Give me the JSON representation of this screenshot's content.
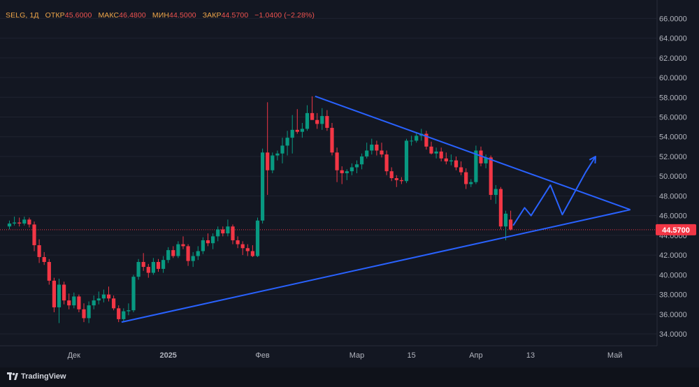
{
  "legend": {
    "symbol": "SELG, 1Д",
    "open_label": "ОТКР",
    "open": "45.6000",
    "high_label": "МАКС",
    "high": "46.4800",
    "low_label": "МИН",
    "low": "44.5000",
    "close_label": "ЗАКР",
    "close": "44.5700",
    "change": "−1.0400 (−2.28%)"
  },
  "watermark": {
    "text": "TradingView"
  },
  "colors": {
    "background": "#131722",
    "up": "#089981",
    "down": "#f23645",
    "trendline": "#2962ff",
    "price_line": "#f23645",
    "axis_text": "#b2b5be",
    "grid": "#1f2330"
  },
  "chart_data": {
    "type": "candlestick",
    "ylim": [
      32.8,
      67.3
    ],
    "y_ticks": [
      "34.0000",
      "36.0000",
      "38.0000",
      "40.0000",
      "42.0000",
      "44.0000",
      "46.0000",
      "48.0000",
      "50.0000",
      "52.0000",
      "54.0000",
      "56.0000",
      "58.0000",
      "60.0000",
      "62.0000",
      "64.0000",
      "66.0000"
    ],
    "x_tick_labels": [
      {
        "label": "Дек",
        "bar": 13
      },
      {
        "label": "2025",
        "bar": 32
      },
      {
        "label": "Фев",
        "bar": 51
      },
      {
        "label": "Мар",
        "bar": 70
      },
      {
        "label": "15",
        "bar": 81
      },
      {
        "label": "Апр",
        "bar": 94
      },
      {
        "label": "13",
        "bar": 105
      },
      {
        "label": "Май",
        "bar": 122
      }
    ],
    "last_price": 44.57,
    "last_price_label": "44.5700",
    "candles": [
      [
        44.9,
        45.5,
        44.6,
        45.2
      ],
      [
        45.2,
        45.9,
        45.0,
        45.3
      ],
      [
        45.3,
        45.8,
        44.9,
        45.2
      ],
      [
        45.2,
        45.9,
        45.0,
        45.6
      ],
      [
        45.6,
        45.8,
        44.8,
        45.1
      ],
      [
        45.1,
        45.4,
        42.4,
        43.0
      ],
      [
        43.0,
        43.6,
        41.2,
        41.8
      ],
      [
        41.8,
        42.3,
        41.0,
        41.3
      ],
      [
        41.3,
        41.6,
        39.0,
        39.4
      ],
      [
        39.4,
        39.7,
        36.2,
        36.7
      ],
      [
        36.7,
        39.6,
        35.1,
        39.0
      ],
      [
        39.0,
        39.3,
        37.0,
        37.4
      ],
      [
        37.4,
        38.1,
        36.5,
        36.9
      ],
      [
        36.9,
        38.2,
        36.6,
        37.8
      ],
      [
        37.8,
        38.0,
        36.2,
        36.5
      ],
      [
        36.5,
        37.1,
        35.2,
        35.6
      ],
      [
        35.6,
        37.3,
        35.1,
        36.9
      ],
      [
        36.9,
        37.9,
        36.5,
        37.4
      ],
      [
        37.4,
        38.3,
        37.0,
        37.6
      ],
      [
        37.6,
        38.5,
        37.2,
        38.0
      ],
      [
        38.0,
        38.8,
        37.3,
        37.6
      ],
      [
        37.6,
        37.9,
        36.4,
        36.6
      ],
      [
        36.6,
        36.9,
        35.2,
        35.5
      ],
      [
        35.5,
        36.6,
        35.3,
        36.3
      ],
      [
        36.3,
        37.1,
        35.9,
        36.4
      ],
      [
        36.4,
        40.0,
        36.2,
        39.8
      ],
      [
        39.8,
        41.6,
        39.5,
        41.3
      ],
      [
        41.3,
        42.2,
        40.4,
        40.8
      ],
      [
        40.8,
        41.1,
        39.7,
        40.2
      ],
      [
        40.2,
        41.7,
        40.0,
        41.3
      ],
      [
        41.3,
        41.6,
        40.3,
        40.6
      ],
      [
        40.6,
        41.9,
        40.2,
        41.5
      ],
      [
        41.5,
        42.8,
        41.2,
        42.5
      ],
      [
        42.5,
        42.9,
        41.7,
        41.9
      ],
      [
        41.9,
        43.4,
        41.7,
        43.1
      ],
      [
        43.1,
        43.9,
        42.6,
        42.9
      ],
      [
        42.9,
        43.1,
        40.9,
        41.4
      ],
      [
        41.4,
        42.3,
        40.8,
        41.9
      ],
      [
        41.9,
        42.9,
        41.5,
        42.4
      ],
      [
        42.4,
        43.8,
        42.1,
        43.5
      ],
      [
        43.5,
        44.2,
        42.9,
        43.2
      ],
      [
        43.2,
        44.2,
        42.6,
        43.9
      ],
      [
        43.9,
        44.9,
        43.4,
        44.6
      ],
      [
        44.6,
        44.9,
        43.9,
        44.2
      ],
      [
        44.2,
        45.6,
        43.9,
        44.9
      ],
      [
        44.9,
        45.1,
        43.1,
        43.5
      ],
      [
        43.5,
        43.9,
        42.7,
        43.1
      ],
      [
        43.1,
        43.4,
        42.0,
        42.7
      ],
      [
        42.7,
        43.1,
        41.9,
        42.4
      ],
      [
        42.4,
        43.0,
        41.8,
        41.9
      ],
      [
        41.9,
        45.8,
        41.8,
        45.5
      ],
      [
        45.5,
        52.8,
        45.2,
        52.4
      ],
      [
        52.4,
        57.5,
        48.1,
        50.6
      ],
      [
        50.6,
        52.4,
        50.3,
        52.1
      ],
      [
        52.1,
        52.6,
        51.6,
        52.3
      ],
      [
        52.3,
        53.9,
        51.3,
        53.1
      ],
      [
        53.1,
        54.6,
        52.1,
        53.9
      ],
      [
        53.9,
        56.2,
        52.3,
        54.7
      ],
      [
        54.7,
        56.8,
        54.3,
        54.5
      ],
      [
        54.5,
        55.4,
        53.9,
        54.8
      ],
      [
        54.8,
        57.2,
        54.6,
        56.4
      ],
      [
        56.4,
        58.1,
        55.8,
        55.7
      ],
      [
        55.7,
        56.4,
        54.8,
        55.3
      ],
      [
        55.3,
        56.9,
        54.7,
        56.1
      ],
      [
        56.1,
        56.7,
        54.6,
        54.9
      ],
      [
        54.9,
        55.4,
        52.1,
        52.4
      ],
      [
        52.4,
        52.9,
        49.4,
        50.6
      ],
      [
        50.6,
        51.0,
        49.2,
        50.3
      ],
      [
        50.3,
        50.7,
        49.6,
        50.5
      ],
      [
        50.5,
        51.3,
        50.1,
        50.9
      ],
      [
        50.9,
        51.6,
        50.3,
        51.2
      ],
      [
        51.2,
        52.3,
        50.7,
        52.0
      ],
      [
        52.0,
        53.4,
        51.8,
        52.6
      ],
      [
        52.6,
        53.8,
        52.2,
        53.2
      ],
      [
        53.2,
        53.6,
        52.1,
        52.6
      ],
      [
        52.6,
        53.4,
        51.9,
        52.2
      ],
      [
        52.2,
        52.6,
        50.1,
        50.5
      ],
      [
        50.5,
        50.9,
        49.5,
        49.8
      ],
      [
        49.8,
        50.1,
        48.9,
        49.6
      ],
      [
        49.6,
        49.9,
        49.2,
        49.5
      ],
      [
        49.5,
        53.8,
        49.3,
        53.6
      ],
      [
        53.6,
        54.1,
        53.1,
        53.6
      ],
      [
        53.6,
        54.4,
        53.4,
        54.1
      ],
      [
        54.1,
        54.8,
        53.6,
        54.3
      ],
      [
        54.3,
        54.6,
        52.7,
        53.0
      ],
      [
        53.0,
        53.5,
        52.2,
        52.3
      ],
      [
        52.3,
        52.9,
        51.8,
        52.5
      ],
      [
        52.5,
        52.9,
        51.5,
        51.8
      ],
      [
        51.8,
        52.4,
        51.2,
        51.5
      ],
      [
        51.5,
        52.2,
        51.1,
        51.6
      ],
      [
        51.6,
        52.0,
        50.6,
        50.9
      ],
      [
        50.9,
        51.5,
        50.1,
        50.4
      ],
      [
        50.4,
        50.8,
        48.7,
        49.2
      ],
      [
        49.2,
        49.7,
        48.9,
        49.4
      ],
      [
        49.4,
        53.1,
        49.2,
        52.6
      ],
      [
        52.6,
        53.0,
        51.0,
        51.3
      ],
      [
        51.3,
        52.2,
        50.8,
        51.9
      ],
      [
        51.9,
        52.1,
        47.6,
        48.1
      ],
      [
        48.1,
        49.1,
        47.2,
        48.7
      ],
      [
        48.7,
        48.9,
        44.6,
        44.9
      ],
      [
        44.9,
        46.5,
        43.5,
        46.2
      ],
      [
        45.6,
        46.5,
        44.5,
        44.6
      ]
    ],
    "trendlines": [
      {
        "name": "upper",
        "points": [
          [
            61.6,
            58.1
          ],
          [
            125.1,
            46.6
          ]
        ]
      },
      {
        "name": "lower",
        "points": [
          [
            22.6,
            35.2
          ],
          [
            125.1,
            46.6
          ]
        ]
      }
    ],
    "projection_path": [
      [
        101.5,
        45.0
      ],
      [
        103.8,
        46.8
      ],
      [
        105.1,
        46.0
      ],
      [
        109.0,
        49.1
      ],
      [
        111.4,
        46.1
      ],
      [
        116.1,
        50.4
      ],
      [
        118.1,
        52.0
      ]
    ]
  }
}
